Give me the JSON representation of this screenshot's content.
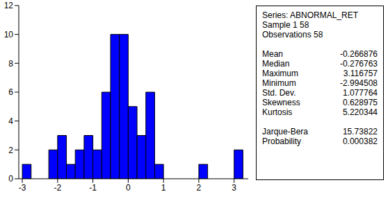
{
  "chart_data": {
    "type": "histogram",
    "bins": [
      -3,
      -2.75,
      -2.5,
      -2.25,
      -2,
      -1.75,
      -1.5,
      -1.25,
      -1,
      -0.75,
      -0.5,
      -0.25,
      0,
      0.25,
      0.5,
      0.75,
      1,
      1.25,
      1.5,
      1.75,
      2,
      2.25,
      2.5,
      2.75,
      3,
      3.25
    ],
    "counts": [
      1,
      0,
      0,
      2,
      3,
      1,
      2,
      3,
      2,
      6,
      10,
      10,
      5,
      3,
      6,
      1,
      0,
      0,
      0,
      0,
      1,
      0,
      0,
      0,
      2
    ],
    "color": "#0000ff",
    "xlim": [
      -3.1,
      3.4
    ],
    "xticks": [
      -3,
      -2,
      -1,
      0,
      1,
      2,
      3
    ],
    "ylim": [
      0,
      12
    ],
    "yticks": [
      0,
      2,
      4,
      6,
      8,
      10,
      12
    ],
    "grid": false
  },
  "stats_box": {
    "header": [
      "Series: ABNORMAL_RET",
      "Sample 1 58",
      "Observations 58"
    ],
    "rows": [
      {
        "label": "Mean",
        "value": -0.266876
      },
      {
        "label": "Median",
        "value": -0.276763
      },
      {
        "label": "Maximum",
        "value": 3.116757
      },
      {
        "label": "Minimum",
        "value": -2.994508
      },
      {
        "label": "Std. Dev.",
        "value": 1.077764
      },
      {
        "label": "Skewness",
        "value": 0.628975
      },
      {
        "label": "Kurtosis",
        "value": 5.220344
      }
    ],
    "test_rows": [
      {
        "label": "Jarque-Bera",
        "value": 15.73822
      },
      {
        "label": "Probability",
        "value": 0.000382
      }
    ]
  }
}
